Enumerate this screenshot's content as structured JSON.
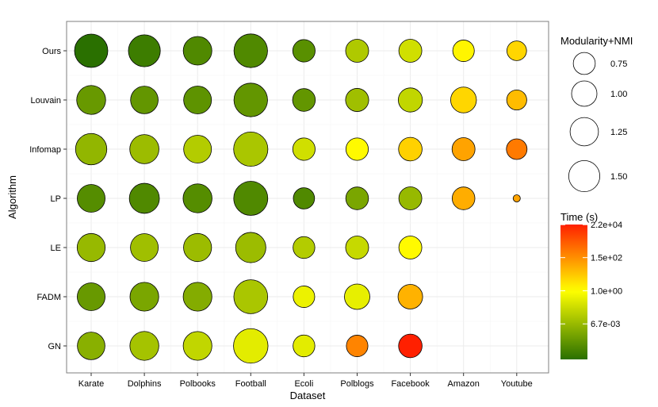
{
  "chart_data": {
    "type": "scatter",
    "subtype": "bubble-matrix",
    "xlabel": "Dataset",
    "ylabel": "Algorithm",
    "categories_x": [
      "Karate",
      "Dolphins",
      "Polbooks",
      "Football",
      "Ecoli",
      "Polblogs",
      "Facebook",
      "Amazon",
      "Youtube"
    ],
    "categories_y": [
      "Ours",
      "Louvain",
      "Infomap",
      "LP",
      "LE",
      "FADM",
      "GN"
    ],
    "size_legend": {
      "title": "Modularity+NMI",
      "values": [
        0.75,
        1.0,
        1.25,
        1.5
      ],
      "labels": [
        "0.75",
        "1.00",
        "1.25",
        "1.50"
      ]
    },
    "color_legend": {
      "title": "Time (s)",
      "scale": "log10",
      "range_log10": [
        -4.5,
        4.35
      ],
      "ticks": [
        {
          "label": "2.2e+04",
          "log10": 4.34
        },
        {
          "label": "1.5e+02",
          "log10": 2.18
        },
        {
          "label": "1.0e+00",
          "log10": 0.0
        },
        {
          "label": "6.7e-03",
          "log10": -2.17
        }
      ],
      "colors": [
        "#2a7000",
        "#ffff00",
        "#ff2000"
      ],
      "color_stops_log10": [
        -4.5,
        0.0,
        4.35
      ]
    },
    "points": [
      {
        "algorithm": "Ours",
        "dataset": "Karate",
        "score": 1.72,
        "time_log10": -4.5
      },
      {
        "algorithm": "Ours",
        "dataset": "Dolphins",
        "score": 1.58,
        "time_log10": -4.1
      },
      {
        "algorithm": "Ours",
        "dataset": "Polbooks",
        "score": 1.27,
        "time_log10": -3.7
      },
      {
        "algorithm": "Ours",
        "dataset": "Football",
        "score": 1.75,
        "time_log10": -3.7
      },
      {
        "algorithm": "Ours",
        "dataset": "Ecoli",
        "score": 0.78,
        "time_log10": -3.5
      },
      {
        "algorithm": "Ours",
        "dataset": "Polblogs",
        "score": 0.82,
        "time_log10": -1.7
      },
      {
        "algorithm": "Ours",
        "dataset": "Facebook",
        "score": 0.82,
        "time_log10": -1.0
      },
      {
        "algorithm": "Ours",
        "dataset": "Amazon",
        "score": 0.72,
        "time_log10": 0.2
      },
      {
        "algorithm": "Ours",
        "dataset": "Youtube",
        "score": 0.6,
        "time_log10": 0.8
      },
      {
        "algorithm": "Louvain",
        "dataset": "Karate",
        "score": 1.3,
        "time_log10": -3.2
      },
      {
        "algorithm": "Louvain",
        "dataset": "Dolphins",
        "score": 1.18,
        "time_log10": -3.3
      },
      {
        "algorithm": "Louvain",
        "dataset": "Polbooks",
        "score": 1.2,
        "time_log10": -3.4
      },
      {
        "algorithm": "Louvain",
        "dataset": "Football",
        "score": 1.75,
        "time_log10": -3.3
      },
      {
        "algorithm": "Louvain",
        "dataset": "Ecoli",
        "score": 0.8,
        "time_log10": -3.3
      },
      {
        "algorithm": "Louvain",
        "dataset": "Polblogs",
        "score": 0.83,
        "time_log10": -2.0
      },
      {
        "algorithm": "Louvain",
        "dataset": "Facebook",
        "score": 0.9,
        "time_log10": -1.3
      },
      {
        "algorithm": "Louvain",
        "dataset": "Amazon",
        "score": 1.03,
        "time_log10": 0.8
      },
      {
        "algorithm": "Louvain",
        "dataset": "Youtube",
        "score": 0.62,
        "time_log10": 1.3
      },
      {
        "algorithm": "Infomap",
        "dataset": "Karate",
        "score": 1.52,
        "time_log10": -2.3
      },
      {
        "algorithm": "Infomap",
        "dataset": "Dolphins",
        "score": 1.32,
        "time_log10": -2.1
      },
      {
        "algorithm": "Infomap",
        "dataset": "Polbooks",
        "score": 1.2,
        "time_log10": -1.6
      },
      {
        "algorithm": "Infomap",
        "dataset": "Football",
        "score": 1.82,
        "time_log10": -1.8
      },
      {
        "algorithm": "Infomap",
        "dataset": "Ecoli",
        "score": 0.78,
        "time_log10": -1.0
      },
      {
        "algorithm": "Infomap",
        "dataset": "Polblogs",
        "score": 0.78,
        "time_log10": 0.1
      },
      {
        "algorithm": "Infomap",
        "dataset": "Facebook",
        "score": 0.86,
        "time_log10": 0.9
      },
      {
        "algorithm": "Infomap",
        "dataset": "Amazon",
        "score": 0.82,
        "time_log10": 1.8
      },
      {
        "algorithm": "Infomap",
        "dataset": "Youtube",
        "score": 0.66,
        "time_log10": 2.6
      },
      {
        "algorithm": "LP",
        "dataset": "Karate",
        "score": 1.2,
        "time_log10": -3.6
      },
      {
        "algorithm": "LP",
        "dataset": "Dolphins",
        "score": 1.4,
        "time_log10": -3.7
      },
      {
        "algorithm": "LP",
        "dataset": "Polbooks",
        "score": 1.3,
        "time_log10": -3.6
      },
      {
        "algorithm": "LP",
        "dataset": "Football",
        "score": 1.8,
        "time_log10": -3.7
      },
      {
        "algorithm": "LP",
        "dataset": "Ecoli",
        "score": 0.7,
        "time_log10": -3.7
      },
      {
        "algorithm": "LP",
        "dataset": "Polblogs",
        "score": 0.8,
        "time_log10": -2.8
      },
      {
        "algorithm": "LP",
        "dataset": "Facebook",
        "score": 0.82,
        "time_log10": -2.2
      },
      {
        "algorithm": "LP",
        "dataset": "Amazon",
        "score": 0.8,
        "time_log10": 1.6
      },
      {
        "algorithm": "LP",
        "dataset": "Youtube",
        "score": 0.08,
        "time_log10": 1.8
      },
      {
        "algorithm": "LE",
        "dataset": "Karate",
        "score": 1.22,
        "time_log10": -2.2
      },
      {
        "algorithm": "LE",
        "dataset": "Dolphins",
        "score": 1.2,
        "time_log10": -2.0
      },
      {
        "algorithm": "LE",
        "dataset": "Polbooks",
        "score": 1.22,
        "time_log10": -2.1
      },
      {
        "algorithm": "LE",
        "dataset": "Football",
        "score": 1.42,
        "time_log10": -2.1
      },
      {
        "algorithm": "LE",
        "dataset": "Ecoli",
        "score": 0.74,
        "time_log10": -1.6
      },
      {
        "algorithm": "LE",
        "dataset": "Polblogs",
        "score": 0.82,
        "time_log10": -1.2
      },
      {
        "algorithm": "LE",
        "dataset": "Facebook",
        "score": 0.82,
        "time_log10": 0.1
      }
    ],
    "points_part2": [
      {
        "algorithm": "FADM",
        "dataset": "Karate",
        "score": 1.2,
        "time_log10": -3.2
      },
      {
        "algorithm": "FADM",
        "dataset": "Dolphins",
        "score": 1.28,
        "time_log10": -2.8
      },
      {
        "algorithm": "FADM",
        "dataset": "Polbooks",
        "score": 1.28,
        "time_log10": -2.6
      },
      {
        "algorithm": "FADM",
        "dataset": "Football",
        "score": 1.78,
        "time_log10": -1.8
      },
      {
        "algorithm": "FADM",
        "dataset": "Ecoli",
        "score": 0.72,
        "time_log10": -0.4
      },
      {
        "algorithm": "FADM",
        "dataset": "Polblogs",
        "score": 1.0,
        "time_log10": -0.5
      },
      {
        "algorithm": "FADM",
        "dataset": "Facebook",
        "score": 0.94,
        "time_log10": 1.5
      },
      {
        "algorithm": "GN",
        "dataset": "Karate",
        "score": 1.18,
        "time_log10": -2.5
      },
      {
        "algorithm": "GN",
        "dataset": "Dolphins",
        "score": 1.3,
        "time_log10": -1.9
      },
      {
        "algorithm": "GN",
        "dataset": "Polbooks",
        "score": 1.28,
        "time_log10": -1.3
      },
      {
        "algorithm": "GN",
        "dataset": "Football",
        "score": 1.85,
        "time_log10": -0.6
      },
      {
        "algorithm": "GN",
        "dataset": "Ecoli",
        "score": 0.74,
        "time_log10": -0.6
      },
      {
        "algorithm": "GN",
        "dataset": "Polblogs",
        "score": 0.72,
        "time_log10": 2.4
      },
      {
        "algorithm": "GN",
        "dataset": "Facebook",
        "score": 0.86,
        "time_log10": 4.35
      }
    ]
  }
}
